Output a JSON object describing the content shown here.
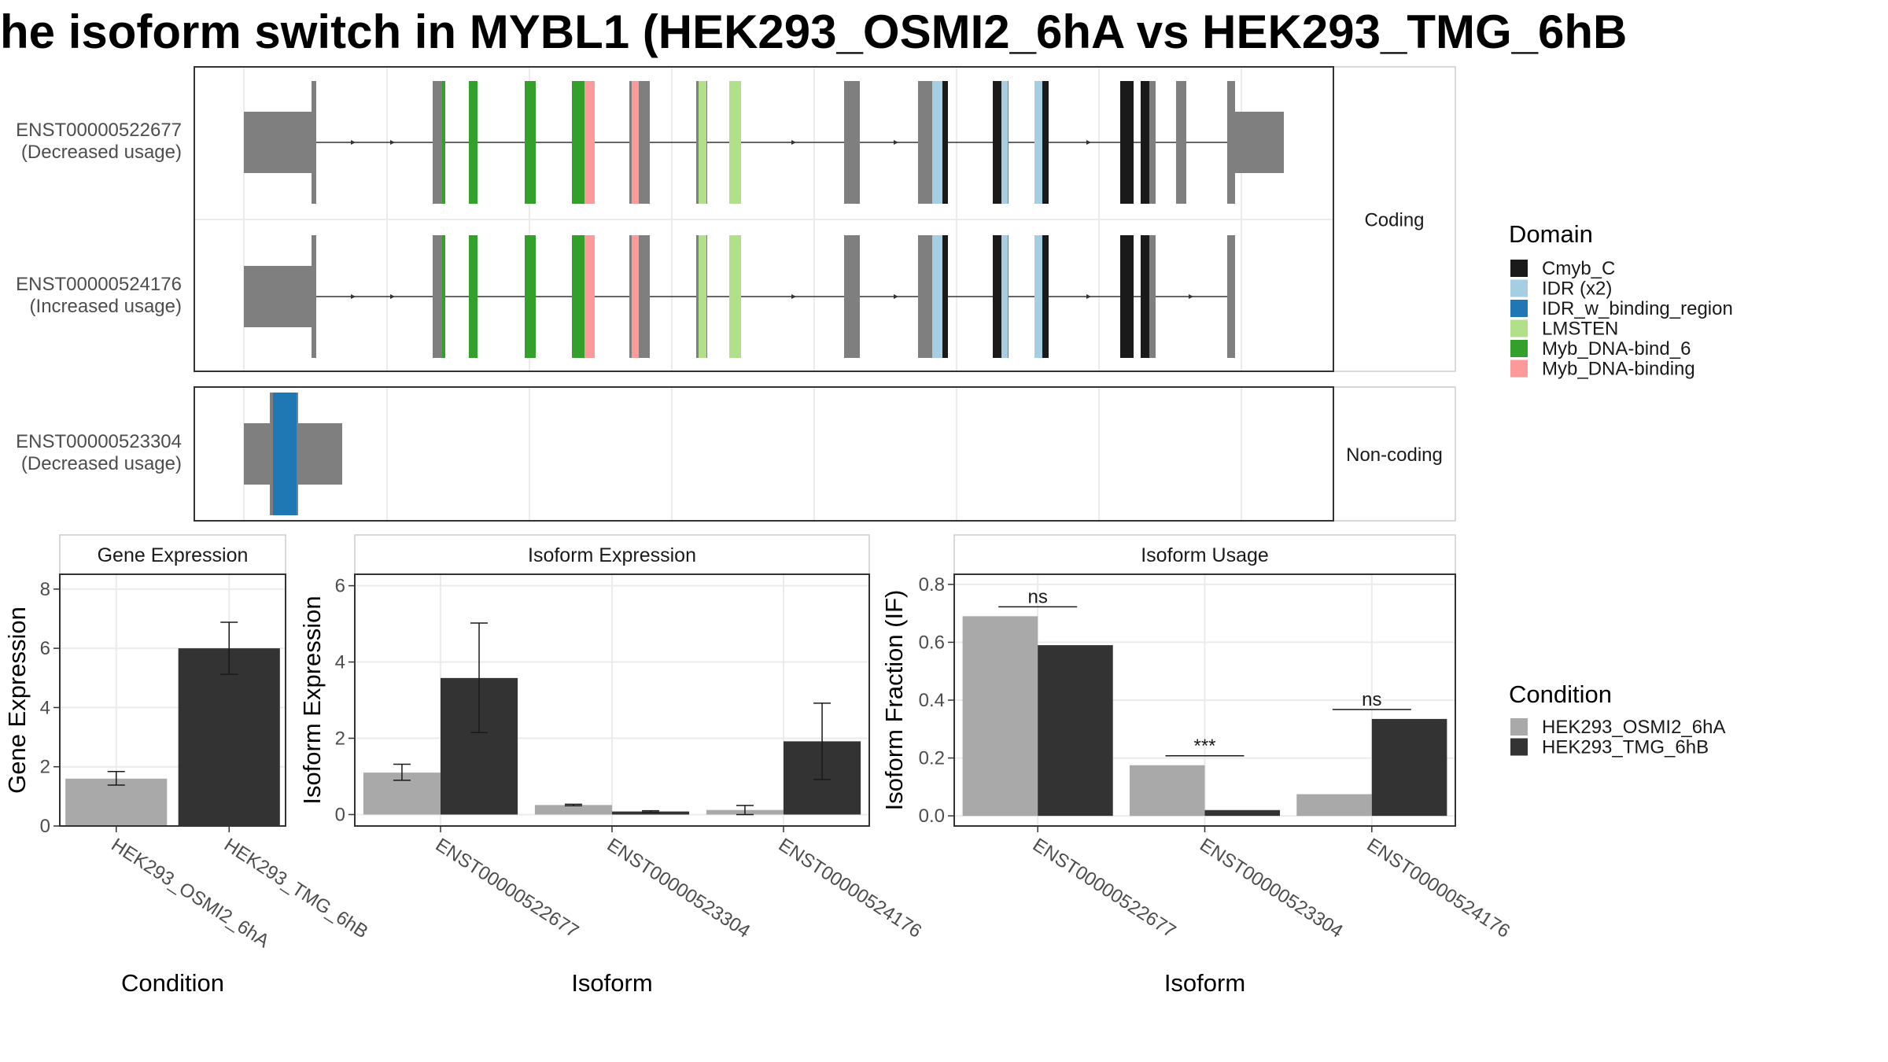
{
  "title": "he isoform switch in MYBL1 (HEK293_OSMI2_6hA vs HEK293_TMG_6hB",
  "colors": {
    "exon": "#7f7f7f",
    "cond_a": "#a9a9a9",
    "cond_b": "#333333",
    "Cmyb_C": "#1a1a1a",
    "IDR (x2)": "#a6cee3",
    "IDR_w_binding_region": "#1f78b4",
    "LMSTEN": "#b2df8a",
    "Myb_DNA-bind_6": "#33a02c",
    "Myb_DNA-binding": "#fb9a99"
  },
  "chart_data": [
    {
      "type": "transcript_structure",
      "panels": [
        {
          "strip": "Coding",
          "transcripts": [
            {
              "name": "ENST00000522677",
              "usage": "(Decreased usage)"
            },
            {
              "name": "ENST00000524176",
              "usage": "(Increased usage)"
            }
          ]
        },
        {
          "strip": "Non-coding",
          "transcripts": [
            {
              "name": "ENST00000523304",
              "usage": "(Decreased usage)"
            }
          ]
        }
      ],
      "legend": {
        "title": "Domain",
        "items": [
          "Cmyb_C",
          "IDR (x2)",
          "IDR_w_binding_region",
          "LMSTEN",
          "Myb_DNA-bind_6",
          "Myb_DNA-binding"
        ]
      }
    },
    {
      "type": "bar",
      "strip": "Gene Expression",
      "xlabel": "Condition",
      "ylabel": "Gene Expression",
      "categories": [
        "HEK293_OSMI2_6hA",
        "HEK293_TMG_6hB"
      ],
      "values": [
        1.6,
        6.0
      ],
      "errors": [
        [
          1.38,
          1.84
        ],
        [
          5.12,
          6.88
        ]
      ],
      "ylim": [
        0,
        8.5
      ],
      "yticks": [
        0,
        2,
        4,
        6,
        8
      ]
    },
    {
      "type": "bar",
      "strip": "Isoform Expression",
      "xlabel": "Isoform",
      "ylabel": "Isoform Expression",
      "categories": [
        "ENST00000522677",
        "ENST00000523304",
        "ENST00000524176"
      ],
      "series": [
        {
          "name": "HEK293_OSMI2_6hA",
          "values": [
            1.1,
            0.25,
            0.12
          ],
          "errors": [
            [
              0.9,
              1.32
            ],
            [
              0.23,
              0.27
            ],
            [
              0.0,
              0.24
            ]
          ]
        },
        {
          "name": "HEK293_TMG_6hB",
          "values": [
            3.58,
            0.08,
            1.92
          ],
          "errors": [
            [
              2.15,
              5.02
            ],
            [
              0.06,
              0.1
            ],
            [
              0.92,
              2.92
            ]
          ]
        }
      ],
      "ylim": [
        -0.3,
        6.3
      ],
      "yticks": [
        0,
        2,
        4,
        6
      ]
    },
    {
      "type": "bar",
      "strip": "Isoform Usage",
      "xlabel": "Isoform",
      "ylabel": "Isoform Fraction (IF)",
      "categories": [
        "ENST00000522677",
        "ENST00000523304",
        "ENST00000524176"
      ],
      "series": [
        {
          "name": "HEK293_OSMI2_6hA",
          "values": [
            0.69,
            0.175,
            0.075
          ]
        },
        {
          "name": "HEK293_TMG_6hB",
          "values": [
            0.59,
            0.02,
            0.335
          ]
        }
      ],
      "significance": [
        "ns",
        "***",
        "ns"
      ],
      "ylim": [
        -0.035,
        0.835
      ],
      "yticks": [
        "0.0",
        "0.2",
        "0.4",
        "0.6",
        "0.8"
      ],
      "legend": {
        "title": "Condition",
        "items": [
          "HEK293_OSMI2_6hA",
          "HEK293_TMG_6hB"
        ]
      }
    }
  ]
}
